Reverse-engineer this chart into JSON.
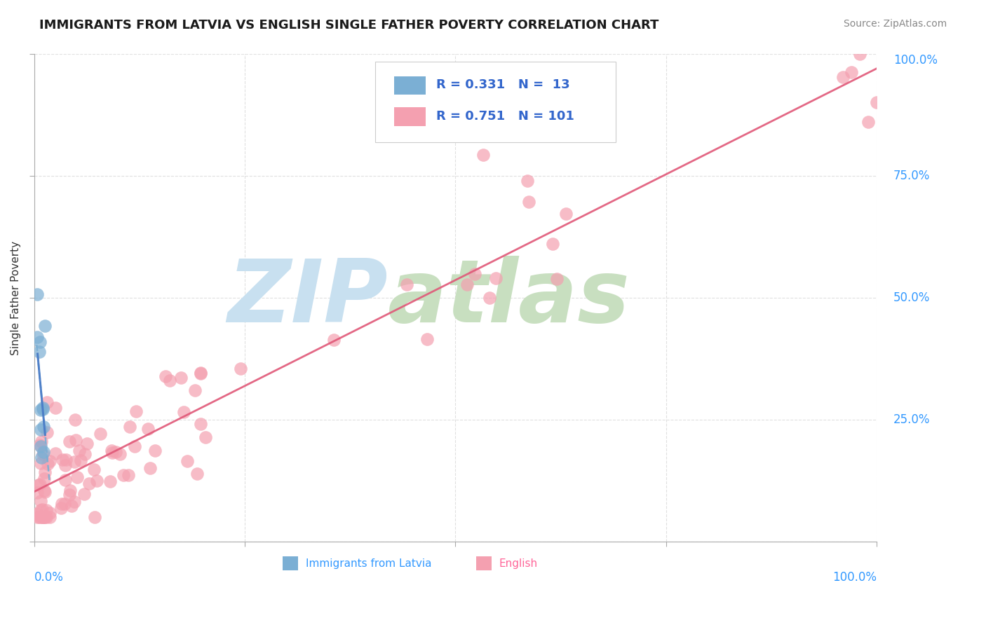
{
  "title": "IMMIGRANTS FROM LATVIA VS ENGLISH SINGLE FATHER POVERTY CORRELATION CHART",
  "source": "Source: ZipAtlas.com",
  "ylabel": "Single Father Poverty",
  "background_color": "#ffffff",
  "grid_color": "#dddddd",
  "watermark_zip": "ZIP",
  "watermark_atlas": "atlas",
  "watermark_color_zip": "#c8e0f0",
  "watermark_color_atlas": "#c8dfc0",
  "title_color": "#1a1a1a",
  "axis_label_color": "#3399ff",
  "source_color": "#888888",
  "blue_color": "#7bafd4",
  "blue_line_color": "#4a7cc7",
  "pink_color": "#f4a0b0",
  "pink_line_color": "#e05878",
  "legend_R_blue": "0.331",
  "legend_N_blue": "13",
  "legend_R_pink": "0.751",
  "legend_N_pink": "101",
  "legend_label_blue": "Immigrants from Latvia",
  "legend_label_pink": "English"
}
